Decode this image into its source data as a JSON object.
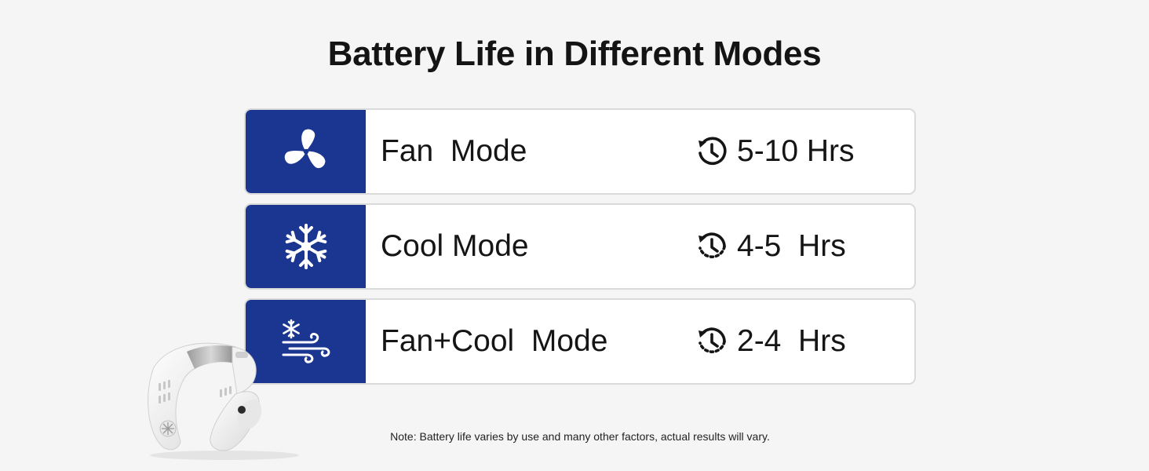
{
  "title": "Battery Life in Different Modes",
  "rows": [
    {
      "icon": "fan-icon",
      "label": "Fan  Mode",
      "duration": "5-10 Hrs"
    },
    {
      "icon": "snowflake-icon",
      "label": "Cool Mode",
      "duration": "4-5  Hrs"
    },
    {
      "icon": "snowflake-wind-icon",
      "label": "Fan+Cool  Mode",
      "duration": "2-4  Hrs"
    }
  ],
  "note": "Note: Battery life varies by use and many other factors, actual results will vary.",
  "colors": {
    "accent": "#1b3690",
    "background": "#f5f5f5",
    "row_border": "#dadada"
  }
}
